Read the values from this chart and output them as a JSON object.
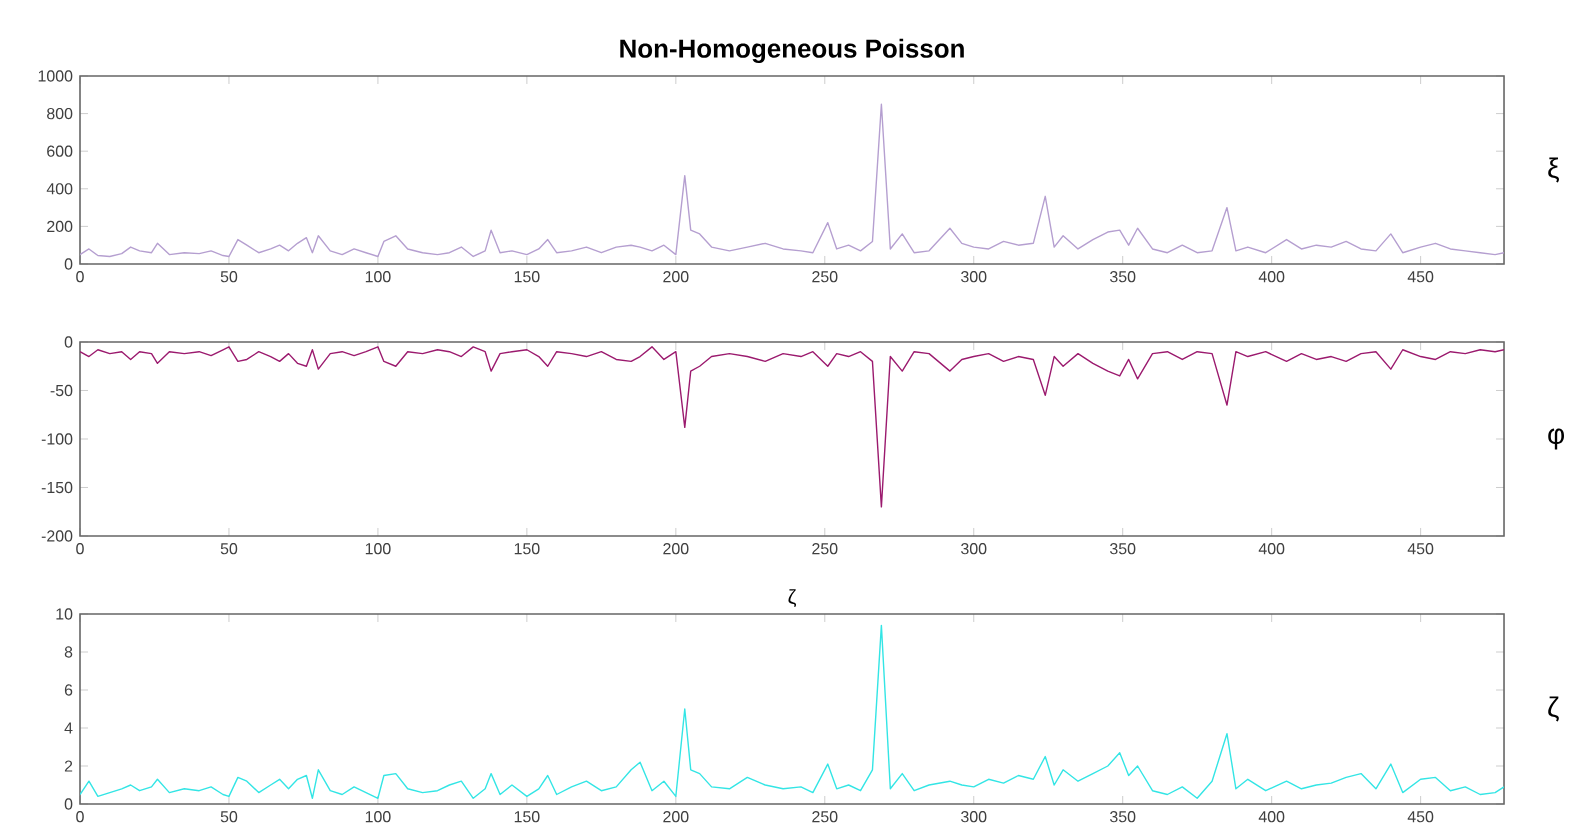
{
  "chart_data": [
    {
      "type": "line",
      "title": "Non-Homogeneous Poisson",
      "ylabel": "ξ",
      "color": "#b59fd0",
      "x": [
        0,
        3,
        6,
        10,
        14,
        17,
        20,
        24,
        26,
        30,
        35,
        40,
        44,
        48,
        50,
        53,
        56,
        60,
        64,
        67,
        70,
        73,
        76,
        78,
        80,
        84,
        88,
        92,
        96,
        100,
        102,
        106,
        110,
        115,
        120,
        124,
        128,
        132,
        136,
        138,
        141,
        145,
        150,
        154,
        157,
        160,
        165,
        170,
        175,
        180,
        185,
        188,
        192,
        196,
        200,
        203,
        205,
        208,
        212,
        218,
        224,
        230,
        236,
        242,
        246,
        251,
        254,
        258,
        262,
        266,
        269,
        272,
        276,
        280,
        285,
        292,
        296,
        300,
        305,
        310,
        315,
        320,
        324,
        327,
        330,
        335,
        340,
        345,
        349,
        352,
        355,
        360,
        365,
        370,
        375,
        380,
        385,
        388,
        392,
        398,
        405,
        410,
        415,
        420,
        425,
        430,
        435,
        440,
        444,
        450,
        455,
        460,
        465,
        470,
        475,
        478
      ],
      "values": [
        50,
        80,
        45,
        40,
        55,
        90,
        70,
        60,
        110,
        50,
        60,
        55,
        70,
        45,
        40,
        130,
        100,
        60,
        80,
        100,
        70,
        110,
        140,
        60,
        150,
        70,
        50,
        80,
        60,
        40,
        120,
        150,
        80,
        60,
        50,
        60,
        90,
        40,
        70,
        180,
        60,
        70,
        50,
        80,
        130,
        60,
        70,
        90,
        60,
        90,
        100,
        90,
        70,
        100,
        50,
        470,
        180,
        160,
        90,
        70,
        90,
        110,
        80,
        70,
        60,
        220,
        80,
        100,
        70,
        120,
        850,
        80,
        160,
        60,
        70,
        190,
        110,
        90,
        80,
        120,
        100,
        110,
        360,
        90,
        150,
        80,
        130,
        170,
        180,
        100,
        190,
        80,
        60,
        100,
        60,
        70,
        300,
        70,
        90,
        60,
        130,
        80,
        100,
        90,
        120,
        80,
        70,
        160,
        60,
        90,
        110,
        80,
        70,
        60,
        50,
        60
      ],
      "xlim": [
        0,
        478
      ],
      "ylim": [
        0,
        1000
      ],
      "xticks": [
        0,
        50,
        100,
        150,
        200,
        250,
        300,
        350,
        400,
        450
      ],
      "yticks": [
        0,
        200,
        400,
        600,
        800,
        1000
      ]
    },
    {
      "type": "line",
      "ylabel": "φ",
      "color": "#9b1a6e",
      "x": [
        0,
        3,
        6,
        10,
        14,
        17,
        20,
        24,
        26,
        30,
        35,
        40,
        44,
        48,
        50,
        53,
        56,
        60,
        64,
        67,
        70,
        73,
        76,
        78,
        80,
        84,
        88,
        92,
        96,
        100,
        102,
        106,
        110,
        115,
        120,
        124,
        128,
        132,
        136,
        138,
        141,
        145,
        150,
        154,
        157,
        160,
        165,
        170,
        175,
        180,
        185,
        188,
        192,
        196,
        200,
        203,
        205,
        208,
        212,
        218,
        224,
        230,
        236,
        242,
        246,
        251,
        254,
        258,
        262,
        266,
        269,
        272,
        276,
        280,
        285,
        292,
        296,
        300,
        305,
        310,
        315,
        320,
        324,
        327,
        330,
        335,
        340,
        345,
        349,
        352,
        355,
        360,
        365,
        370,
        375,
        380,
        385,
        388,
        392,
        398,
        405,
        410,
        415,
        420,
        425,
        430,
        435,
        440,
        444,
        450,
        455,
        460,
        465,
        470,
        475,
        478
      ],
      "values": [
        -10,
        -15,
        -8,
        -12,
        -10,
        -18,
        -10,
        -12,
        -22,
        -10,
        -12,
        -10,
        -14,
        -8,
        -5,
        -20,
        -18,
        -10,
        -15,
        -20,
        -12,
        -22,
        -25,
        -8,
        -28,
        -12,
        -10,
        -14,
        -10,
        -5,
        -20,
        -25,
        -10,
        -12,
        -8,
        -10,
        -15,
        -5,
        -10,
        -30,
        -12,
        -10,
        -8,
        -15,
        -25,
        -10,
        -12,
        -15,
        -10,
        -18,
        -20,
        -15,
        -5,
        -18,
        -10,
        -88,
        -30,
        -25,
        -15,
        -12,
        -15,
        -20,
        -12,
        -15,
        -10,
        -25,
        -12,
        -15,
        -10,
        -20,
        -170,
        -15,
        -30,
        -10,
        -12,
        -30,
        -18,
        -15,
        -12,
        -20,
        -15,
        -18,
        -55,
        -15,
        -25,
        -12,
        -22,
        -30,
        -35,
        -18,
        -38,
        -12,
        -10,
        -18,
        -10,
        -12,
        -65,
        -10,
        -15,
        -10,
        -20,
        -12,
        -18,
        -15,
        -20,
        -12,
        -10,
        -28,
        -8,
        -15,
        -18,
        -10,
        -12,
        -8,
        -10,
        -8
      ],
      "xlim": [
        0,
        478
      ],
      "ylim": [
        -200,
        0
      ],
      "xticks": [
        0,
        50,
        100,
        150,
        200,
        250,
        300,
        350,
        400,
        450
      ],
      "yticks": [
        -200,
        -150,
        -100,
        -50,
        0
      ]
    },
    {
      "type": "line",
      "title": "ζ",
      "ylabel": "ζ",
      "color": "#33e5e5",
      "x": [
        0,
        3,
        6,
        10,
        14,
        17,
        20,
        24,
        26,
        30,
        35,
        40,
        44,
        48,
        50,
        53,
        56,
        60,
        64,
        67,
        70,
        73,
        76,
        78,
        80,
        84,
        88,
        92,
        96,
        100,
        102,
        106,
        110,
        115,
        120,
        124,
        128,
        132,
        136,
        138,
        141,
        145,
        150,
        154,
        157,
        160,
        165,
        170,
        175,
        180,
        185,
        188,
        192,
        196,
        200,
        203,
        205,
        208,
        212,
        218,
        224,
        230,
        236,
        242,
        246,
        251,
        254,
        258,
        262,
        266,
        269,
        272,
        276,
        280,
        285,
        292,
        296,
        300,
        305,
        310,
        315,
        320,
        324,
        327,
        330,
        335,
        340,
        345,
        349,
        352,
        355,
        360,
        365,
        370,
        375,
        380,
        385,
        388,
        392,
        398,
        405,
        410,
        415,
        420,
        425,
        430,
        435,
        440,
        444,
        450,
        455,
        460,
        465,
        470,
        475,
        478
      ],
      "values": [
        0.5,
        1.2,
        0.4,
        0.6,
        0.8,
        1.0,
        0.7,
        0.9,
        1.3,
        0.6,
        0.8,
        0.7,
        0.9,
        0.5,
        0.4,
        1.4,
        1.2,
        0.6,
        1.0,
        1.3,
        0.8,
        1.3,
        1.5,
        0.3,
        1.8,
        0.7,
        0.5,
        0.9,
        0.6,
        0.3,
        1.5,
        1.6,
        0.8,
        0.6,
        0.7,
        1.0,
        1.2,
        0.3,
        0.8,
        1.6,
        0.5,
        1.0,
        0.4,
        0.8,
        1.5,
        0.5,
        0.9,
        1.2,
        0.7,
        0.9,
        1.8,
        2.2,
        0.7,
        1.2,
        0.4,
        5.0,
        1.8,
        1.6,
        0.9,
        0.8,
        1.4,
        1.0,
        0.8,
        0.9,
        0.6,
        2.1,
        0.8,
        1.0,
        0.7,
        1.8,
        9.4,
        0.8,
        1.6,
        0.7,
        1.0,
        1.2,
        1.0,
        0.9,
        1.3,
        1.1,
        1.5,
        1.3,
        2.5,
        1.0,
        1.8,
        1.2,
        1.6,
        2.0,
        2.7,
        1.5,
        2.0,
        0.7,
        0.5,
        0.9,
        0.3,
        1.2,
        3.7,
        0.8,
        1.3,
        0.7,
        1.2,
        0.8,
        1.0,
        1.1,
        1.4,
        1.6,
        0.8,
        2.1,
        0.6,
        1.3,
        1.4,
        0.7,
        0.9,
        0.5,
        0.6,
        0.9
      ],
      "xlim": [
        0,
        478
      ],
      "ylim": [
        0,
        10
      ],
      "xticks": [
        0,
        50,
        100,
        150,
        200,
        250,
        300,
        350,
        400,
        450
      ],
      "yticks": [
        0,
        2,
        4,
        6,
        8,
        10
      ]
    }
  ]
}
